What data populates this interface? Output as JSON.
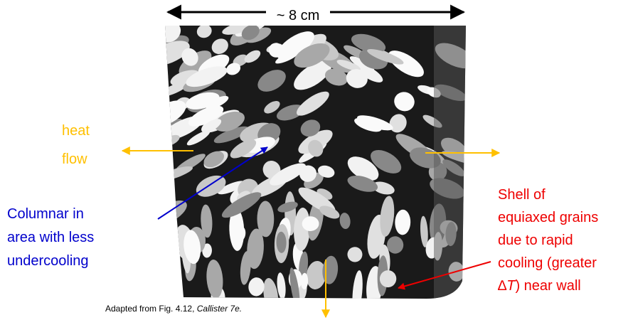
{
  "dimension_label": "~ 8 cm",
  "heat_flow_label": [
    "heat",
    "flow"
  ],
  "columnar_label": [
    "Columnar in",
    "area with less",
    "undercooling"
  ],
  "shell_label": {
    "lines": [
      "Shell of",
      "equiaxed grains",
      "due to rapid",
      "cooling (greater"
    ],
    "last_line": {
      "delta": "∆",
      "symbol": "T",
      "rest": ") near wall"
    }
  },
  "caption": {
    "text": "Adapted from Fig. 4.12, ",
    "source": "Callister 7e."
  }
}
